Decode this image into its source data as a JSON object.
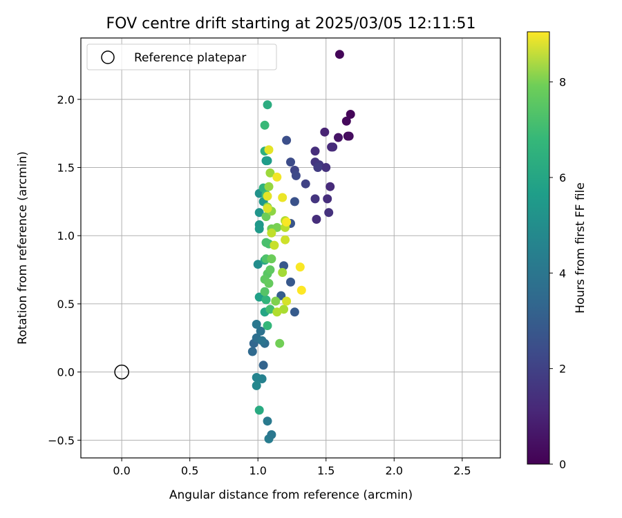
{
  "chart_data": {
    "type": "scatter",
    "title": "FOV centre drift starting at 2025/03/05 12:11:51",
    "xlabel": "Angular distance from reference (arcmin)",
    "ylabel": "Rotation from reference (arcmin)",
    "xlim": [
      -0.3,
      2.78
    ],
    "ylim": [
      -0.63,
      2.45
    ],
    "xticks": [
      0.0,
      0.5,
      1.0,
      1.5,
      2.0,
      2.5
    ],
    "xtick_labels": [
      "0.0",
      "0.5",
      "1.0",
      "1.5",
      "2.0",
      "2.5"
    ],
    "yticks": [
      -0.5,
      0.0,
      0.5,
      1.0,
      1.5,
      2.0
    ],
    "ytick_labels": [
      "−0.5",
      "0.0",
      "0.5",
      "1.0",
      "1.5",
      "2.0"
    ],
    "grid": true,
    "legend": {
      "placement": "top-left",
      "entries": [
        "Reference platepar"
      ]
    },
    "reference_point": {
      "x": 0.0,
      "y": 0.0
    },
    "colorbar": {
      "label": "Hours from first FF file",
      "colormap": "viridis",
      "range": [
        0,
        9.05
      ],
      "ticks": [
        0,
        2,
        4,
        6,
        8
      ],
      "tick_labels": [
        "0",
        "2",
        "4",
        "6",
        "8"
      ]
    },
    "series": [
      {
        "points": [
          {
            "x": 1.6,
            "y": 2.33,
            "h": 0.1
          },
          {
            "x": 1.68,
            "y": 1.89,
            "h": 0.1
          },
          {
            "x": 1.65,
            "y": 1.84,
            "h": 0.2
          },
          {
            "x": 1.66,
            "y": 1.73,
            "h": 0.2
          },
          {
            "x": 1.67,
            "y": 1.73,
            "h": 0.3
          },
          {
            "x": 1.59,
            "y": 1.72,
            "h": 0.5
          },
          {
            "x": 1.49,
            "y": 1.76,
            "h": 0.9
          },
          {
            "x": 1.54,
            "y": 1.65,
            "h": 1.0
          },
          {
            "x": 1.55,
            "y": 1.65,
            "h": 1.1
          },
          {
            "x": 1.42,
            "y": 1.62,
            "h": 1.2
          },
          {
            "x": 1.42,
            "y": 1.54,
            "h": 1.4
          },
          {
            "x": 1.45,
            "y": 1.52,
            "h": 1.5
          },
          {
            "x": 1.5,
            "y": 1.5,
            "h": 1.3
          },
          {
            "x": 1.44,
            "y": 1.5,
            "h": 1.6
          },
          {
            "x": 1.53,
            "y": 1.36,
            "h": 1.1
          },
          {
            "x": 1.51,
            "y": 1.27,
            "h": 1.2
          },
          {
            "x": 1.42,
            "y": 1.27,
            "h": 1.4
          },
          {
            "x": 1.52,
            "y": 1.17,
            "h": 1.3
          },
          {
            "x": 1.43,
            "y": 1.12,
            "h": 1.2
          },
          {
            "x": 1.35,
            "y": 1.38,
            "h": 1.8
          },
          {
            "x": 1.27,
            "y": 1.48,
            "h": 1.9
          },
          {
            "x": 1.28,
            "y": 1.44,
            "h": 2.0
          },
          {
            "x": 1.24,
            "y": 1.54,
            "h": 2.1
          },
          {
            "x": 1.21,
            "y": 1.7,
            "h": 2.2
          },
          {
            "x": 1.27,
            "y": 1.25,
            "h": 2.3
          },
          {
            "x": 1.24,
            "y": 1.09,
            "h": 2.4
          },
          {
            "x": 1.24,
            "y": 0.66,
            "h": 2.5
          },
          {
            "x": 1.27,
            "y": 0.44,
            "h": 2.6
          },
          {
            "x": 1.19,
            "y": 0.78,
            "h": 2.5
          },
          {
            "x": 1.17,
            "y": 0.56,
            "h": 2.7
          },
          {
            "x": 1.04,
            "y": 0.05,
            "h": 2.9
          },
          {
            "x": 0.96,
            "y": 0.15,
            "h": 3.1
          },
          {
            "x": 0.97,
            "y": 0.21,
            "h": 3.0
          },
          {
            "x": 0.99,
            "y": 0.25,
            "h": 3.3
          },
          {
            "x": 1.02,
            "y": 0.3,
            "h": 3.4
          },
          {
            "x": 1.05,
            "y": 0.21,
            "h": 3.2
          },
          {
            "x": 1.03,
            "y": 0.23,
            "h": 3.5
          },
          {
            "x": 0.99,
            "y": 0.35,
            "h": 3.6
          },
          {
            "x": 1.07,
            "y": -0.36,
            "h": 3.7
          },
          {
            "x": 1.08,
            "y": -0.49,
            "h": 3.8
          },
          {
            "x": 1.1,
            "y": -0.46,
            "h": 3.6
          },
          {
            "x": 1.03,
            "y": -0.05,
            "h": 4.0
          },
          {
            "x": 0.99,
            "y": -0.04,
            "h": 4.1
          },
          {
            "x": 0.99,
            "y": -0.1,
            "h": 4.2
          },
          {
            "x": 1.0,
            "y": 0.79,
            "h": 4.4
          },
          {
            "x": 1.01,
            "y": 1.31,
            "h": 4.6
          },
          {
            "x": 1.01,
            "y": 1.17,
            "h": 4.7
          },
          {
            "x": 1.01,
            "y": 1.08,
            "h": 4.8
          },
          {
            "x": 1.01,
            "y": 1.05,
            "h": 4.9
          },
          {
            "x": 1.04,
            "y": 1.25,
            "h": 4.8
          },
          {
            "x": 1.06,
            "y": 1.55,
            "h": 4.9
          },
          {
            "x": 1.07,
            "y": 1.55,
            "h": 5.0
          },
          {
            "x": 1.01,
            "y": 0.55,
            "h": 5.1
          },
          {
            "x": 1.05,
            "y": 0.44,
            "h": 5.3
          },
          {
            "x": 1.05,
            "y": 0.82,
            "h": 5.4
          },
          {
            "x": 1.01,
            "y": -0.28,
            "h": 5.5
          },
          {
            "x": 1.07,
            "y": 1.96,
            "h": 5.6
          },
          {
            "x": 1.05,
            "y": 1.62,
            "h": 5.7
          },
          {
            "x": 1.04,
            "y": 1.35,
            "h": 5.8
          },
          {
            "x": 1.06,
            "y": 0.53,
            "h": 5.9
          },
          {
            "x": 1.07,
            "y": 0.34,
            "h": 6.0
          },
          {
            "x": 1.05,
            "y": 1.81,
            "h": 6.1
          },
          {
            "x": 1.06,
            "y": 1.3,
            "h": 6.2
          },
          {
            "x": 1.09,
            "y": 0.46,
            "h": 6.3
          },
          {
            "x": 1.06,
            "y": 0.95,
            "h": 6.4
          },
          {
            "x": 1.08,
            "y": 0.94,
            "h": 6.4
          },
          {
            "x": 1.06,
            "y": 0.83,
            "h": 6.5
          },
          {
            "x": 1.05,
            "y": 0.59,
            "h": 6.6
          },
          {
            "x": 1.07,
            "y": 0.72,
            "h": 6.7
          },
          {
            "x": 1.05,
            "y": 0.68,
            "h": 6.8
          },
          {
            "x": 1.09,
            "y": 0.75,
            "h": 6.8
          },
          {
            "x": 1.08,
            "y": 0.65,
            "h": 6.9
          },
          {
            "x": 1.1,
            "y": 0.83,
            "h": 7.0
          },
          {
            "x": 1.06,
            "y": 1.14,
            "h": 7.0
          },
          {
            "x": 1.1,
            "y": 1.05,
            "h": 7.1
          },
          {
            "x": 1.14,
            "y": 1.06,
            "h": 7.2
          },
          {
            "x": 1.16,
            "y": 0.21,
            "h": 7.1
          },
          {
            "x": 1.13,
            "y": 0.52,
            "h": 7.3
          },
          {
            "x": 1.07,
            "y": 1.21,
            "h": 7.4
          },
          {
            "x": 1.1,
            "y": 1.18,
            "h": 7.5
          },
          {
            "x": 1.08,
            "y": 1.36,
            "h": 7.6
          },
          {
            "x": 1.09,
            "y": 1.46,
            "h": 7.7
          },
          {
            "x": 1.18,
            "y": 0.73,
            "h": 7.8
          },
          {
            "x": 1.19,
            "y": 0.46,
            "h": 7.9
          },
          {
            "x": 1.14,
            "y": 0.44,
            "h": 8.0
          },
          {
            "x": 1.2,
            "y": 1.11,
            "h": 8.0
          },
          {
            "x": 1.2,
            "y": 1.06,
            "h": 8.1
          },
          {
            "x": 1.1,
            "y": 1.02,
            "h": 8.2
          },
          {
            "x": 1.12,
            "y": 0.93,
            "h": 8.3
          },
          {
            "x": 1.2,
            "y": 0.97,
            "h": 8.4
          },
          {
            "x": 1.21,
            "y": 0.52,
            "h": 8.5
          },
          {
            "x": 1.07,
            "y": 1.2,
            "h": 8.6
          },
          {
            "x": 1.07,
            "y": 1.29,
            "h": 8.7
          },
          {
            "x": 1.08,
            "y": 1.63,
            "h": 8.7
          },
          {
            "x": 1.18,
            "y": 1.28,
            "h": 8.8
          },
          {
            "x": 1.14,
            "y": 1.43,
            "h": 8.9
          },
          {
            "x": 1.21,
            "y": 1.1,
            "h": 9.0
          },
          {
            "x": 1.31,
            "y": 0.77,
            "h": 9.0
          },
          {
            "x": 1.32,
            "y": 0.6,
            "h": 9.05
          }
        ]
      }
    ]
  }
}
